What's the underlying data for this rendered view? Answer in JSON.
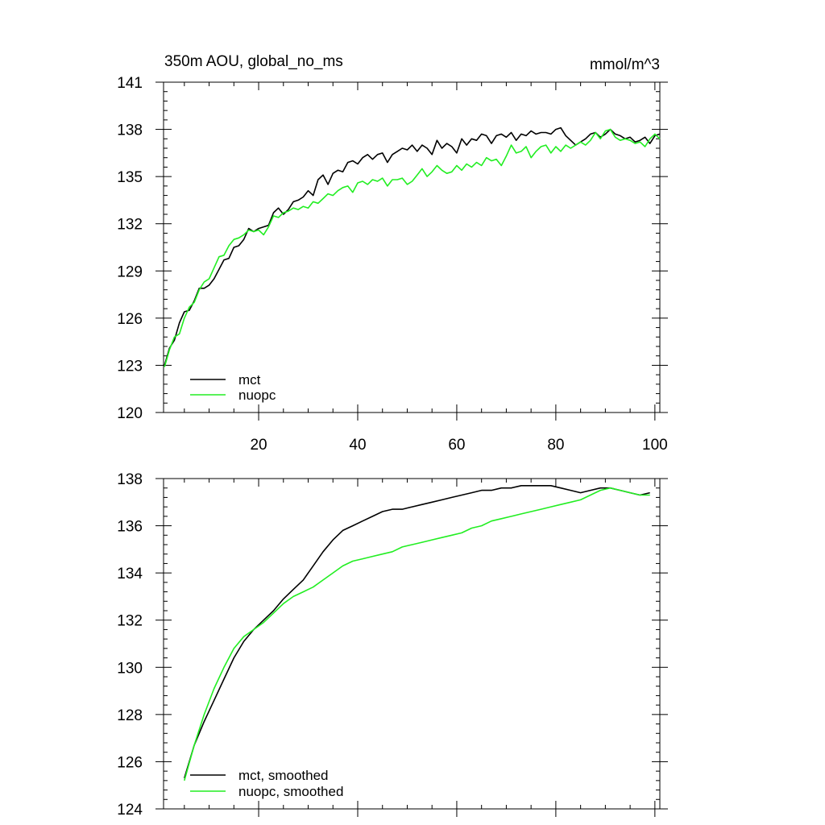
{
  "chart_data": [
    {
      "type": "line",
      "title": "350m AOU, global_no_ms",
      "units": "mmol/m^3",
      "xlim": [
        0.8,
        101
      ],
      "ylim": [
        120,
        141
      ],
      "xticks": [
        20,
        40,
        60,
        80,
        100
      ],
      "yticks": [
        120,
        123,
        126,
        129,
        132,
        135,
        138,
        141
      ],
      "grid": false,
      "legend_position": "bottom-left",
      "series": [
        {
          "name": "mct",
          "color": "#000000",
          "x": [
            1,
            2,
            3,
            4,
            5,
            6,
            7,
            8,
            9,
            10,
            11,
            12,
            13,
            14,
            15,
            16,
            17,
            18,
            19,
            20,
            21,
            22,
            23,
            24,
            25,
            26,
            27,
            28,
            29,
            30,
            31,
            32,
            33,
            34,
            35,
            36,
            37,
            38,
            39,
            40,
            41,
            42,
            43,
            44,
            45,
            46,
            47,
            48,
            49,
            50,
            51,
            52,
            53,
            54,
            55,
            56,
            57,
            58,
            59,
            60,
            61,
            62,
            63,
            64,
            65,
            66,
            67,
            68,
            69,
            70,
            71,
            72,
            73,
            74,
            75,
            76,
            77,
            78,
            79,
            80,
            81,
            82,
            83,
            84,
            85,
            86,
            87,
            88,
            89,
            90,
            91,
            92,
            93,
            94,
            95,
            96,
            97,
            98,
            99,
            100,
            101
          ],
          "values": [
            123.0,
            124.1,
            124.6,
            125.7,
            126.4,
            126.5,
            127.1,
            127.9,
            127.9,
            128.1,
            128.5,
            129.1,
            129.7,
            129.8,
            130.5,
            130.6,
            131.0,
            131.7,
            131.5,
            131.7,
            131.8,
            131.9,
            132.7,
            133.0,
            132.6,
            132.9,
            133.4,
            133.5,
            133.7,
            134.1,
            133.8,
            134.8,
            135.1,
            134.5,
            135.2,
            135.4,
            135.3,
            135.9,
            136.0,
            135.8,
            136.2,
            136.4,
            136.1,
            136.4,
            136.5,
            135.9,
            136.4,
            136.6,
            136.8,
            136.7,
            137.0,
            136.6,
            137.0,
            136.8,
            136.4,
            137.3,
            136.8,
            137.1,
            136.9,
            136.5,
            137.4,
            137.0,
            137.4,
            137.3,
            137.7,
            137.6,
            137.1,
            137.6,
            137.7,
            137.5,
            137.8,
            137.3,
            137.7,
            137.6,
            137.9,
            137.7,
            137.8,
            137.8,
            137.7,
            138.0,
            138.1,
            137.6,
            137.3,
            137.0,
            137.2,
            137.4,
            137.7,
            137.8,
            137.5,
            137.7,
            138.0,
            137.7,
            137.6,
            137.4,
            137.5,
            137.2,
            137.3,
            137.5,
            137.1,
            137.6,
            137.7
          ]
        },
        {
          "name": "nuopc",
          "color": "#22ee22",
          "x": [
            1,
            2,
            3,
            4,
            5,
            6,
            7,
            8,
            9,
            10,
            11,
            12,
            13,
            14,
            15,
            16,
            17,
            18,
            19,
            20,
            21,
            22,
            23,
            24,
            25,
            26,
            27,
            28,
            29,
            30,
            31,
            32,
            33,
            34,
            35,
            36,
            37,
            38,
            39,
            40,
            41,
            42,
            43,
            44,
            45,
            46,
            47,
            48,
            49,
            50,
            51,
            52,
            53,
            54,
            55,
            56,
            57,
            58,
            59,
            60,
            61,
            62,
            63,
            64,
            65,
            66,
            67,
            68,
            69,
            70,
            71,
            72,
            73,
            74,
            75,
            76,
            77,
            78,
            79,
            80,
            81,
            82,
            83,
            84,
            85,
            86,
            87,
            88,
            89,
            90,
            91,
            92,
            93,
            94,
            95,
            96,
            97,
            98,
            99,
            100,
            101
          ],
          "values": [
            122.9,
            124.0,
            124.8,
            125.0,
            126.0,
            126.7,
            127.0,
            127.8,
            128.3,
            128.5,
            129.2,
            129.9,
            130.0,
            130.6,
            131.0,
            131.1,
            131.3,
            131.6,
            131.5,
            131.6,
            131.3,
            131.8,
            132.5,
            132.4,
            132.7,
            132.8,
            133.0,
            132.9,
            133.1,
            133.0,
            133.4,
            133.3,
            133.6,
            133.9,
            133.8,
            134.1,
            134.3,
            134.4,
            134.0,
            134.6,
            134.7,
            134.5,
            134.8,
            134.7,
            134.9,
            134.4,
            134.8,
            134.8,
            134.9,
            134.5,
            134.7,
            135.1,
            135.5,
            135.0,
            135.3,
            135.7,
            135.4,
            135.2,
            135.3,
            135.7,
            135.4,
            135.8,
            135.6,
            135.9,
            135.7,
            136.2,
            136.0,
            136.1,
            135.7,
            136.3,
            137.0,
            136.5,
            136.6,
            136.9,
            136.2,
            136.6,
            136.9,
            137.0,
            136.5,
            136.9,
            136.6,
            137.0,
            136.8,
            137.0,
            137.2,
            137.0,
            137.3,
            137.8,
            137.4,
            137.9,
            138.0,
            137.5,
            137.3,
            137.4,
            137.3,
            137.1,
            137.2,
            136.9,
            137.4,
            137.7,
            137.4
          ]
        }
      ]
    },
    {
      "type": "line",
      "title": "",
      "xlim": [
        0.8,
        101
      ],
      "ylim": [
        124,
        138
      ],
      "xticks": [
        20,
        40,
        60,
        80,
        100
      ],
      "yticks": [
        124,
        126,
        128,
        130,
        132,
        134,
        136,
        138
      ],
      "grid": false,
      "legend_position": "bottom-left",
      "series": [
        {
          "name": "mct, smoothed",
          "color": "#000000",
          "x": [
            5,
            7,
            9,
            11,
            13,
            15,
            17,
            19,
            21,
            23,
            25,
            27,
            29,
            31,
            33,
            35,
            37,
            39,
            41,
            43,
            45,
            47,
            49,
            51,
            53,
            55,
            57,
            59,
            61,
            63,
            65,
            67,
            69,
            71,
            73,
            75,
            77,
            79,
            81,
            83,
            85,
            87,
            89,
            91,
            93,
            95,
            97,
            99
          ],
          "values": [
            125.3,
            126.7,
            127.7,
            128.6,
            129.5,
            130.4,
            131.1,
            131.6,
            132.0,
            132.4,
            132.9,
            133.3,
            133.7,
            134.3,
            134.9,
            135.4,
            135.8,
            136.0,
            136.2,
            136.4,
            136.6,
            136.7,
            136.7,
            136.8,
            136.9,
            137.0,
            137.1,
            137.2,
            137.3,
            137.4,
            137.5,
            137.5,
            137.6,
            137.6,
            137.7,
            137.7,
            137.7,
            137.7,
            137.6,
            137.5,
            137.4,
            137.5,
            137.6,
            137.6,
            137.5,
            137.4,
            137.3,
            137.4
          ]
        },
        {
          "name": "nuopc, smoothed",
          "color": "#22ee22",
          "x": [
            5,
            7,
            9,
            11,
            13,
            15,
            17,
            19,
            21,
            23,
            25,
            27,
            29,
            31,
            33,
            35,
            37,
            39,
            41,
            43,
            45,
            47,
            49,
            51,
            53,
            55,
            57,
            59,
            61,
            63,
            65,
            67,
            69,
            71,
            73,
            75,
            77,
            79,
            81,
            83,
            85,
            87,
            89,
            91,
            93,
            95,
            97,
            99
          ],
          "values": [
            125.2,
            126.7,
            128.0,
            129.1,
            130.0,
            130.8,
            131.3,
            131.6,
            131.9,
            132.3,
            132.7,
            133.0,
            133.2,
            133.4,
            133.7,
            134.0,
            134.3,
            134.5,
            134.6,
            134.7,
            134.8,
            134.9,
            135.1,
            135.2,
            135.3,
            135.4,
            135.5,
            135.6,
            135.7,
            135.9,
            136.0,
            136.2,
            136.3,
            136.4,
            136.5,
            136.6,
            136.7,
            136.8,
            136.9,
            137.0,
            137.1,
            137.3,
            137.5,
            137.6,
            137.5,
            137.4,
            137.3,
            137.3
          ]
        }
      ]
    }
  ]
}
